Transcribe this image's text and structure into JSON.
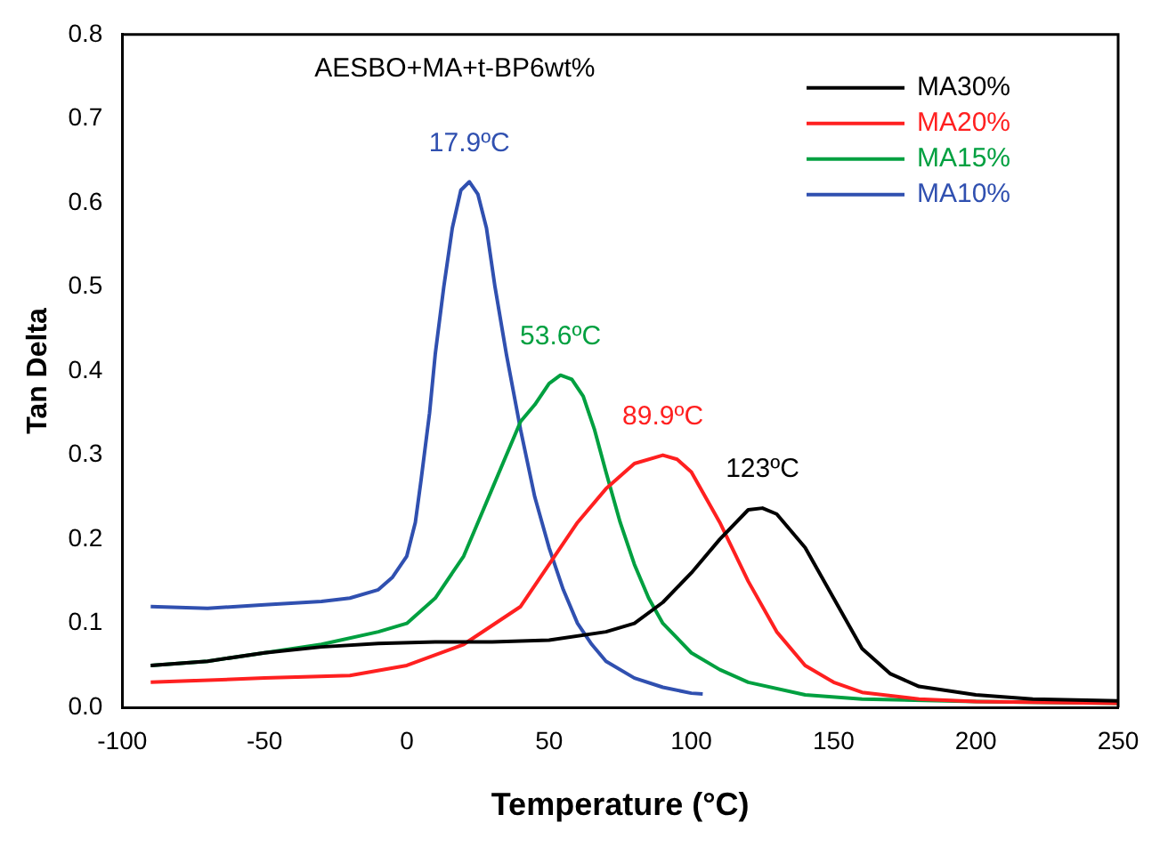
{
  "chart_data": {
    "type": "line",
    "xlabel": "Temperature (°C)",
    "ylabel": "Tan Delta",
    "xlim": [
      -100,
      250
    ],
    "xticks": [
      -100,
      -50,
      0,
      50,
      100,
      150,
      200,
      250
    ],
    "ylim": [
      0,
      0.8
    ],
    "yticks": [
      {
        "value": 0,
        "label": "0.0"
      },
      0.1,
      0.2,
      0.3,
      0.4,
      0.5,
      0.6,
      0.7,
      0.8
    ],
    "grid": false,
    "legend": "top right",
    "marker": "none",
    "line_style": "solid",
    "annotations": [
      "AESBO+MA+t-BP6wt%",
      "123ºC",
      "89.9ºC",
      "53.6ºC",
      "17.9ºC"
    ],
    "series": [
      {
        "name": "MA30%",
        "color": "#000000",
        "x": [
          -90,
          -70,
          -50,
          -30,
          -10,
          10,
          30,
          50,
          70,
          80,
          90,
          100,
          110,
          120,
          125,
          130,
          140,
          150,
          160,
          170,
          180,
          200,
          220,
          250
        ],
        "values": [
          0.05,
          0.055,
          0.065,
          0.072,
          0.076,
          0.078,
          0.078,
          0.08,
          0.09,
          0.1,
          0.125,
          0.16,
          0.2,
          0.235,
          0.237,
          0.23,
          0.19,
          0.13,
          0.07,
          0.04,
          0.025,
          0.015,
          0.01,
          0.008
        ]
      },
      {
        "name": "MA20%",
        "color": "#ff2020",
        "x": [
          -90,
          -50,
          -20,
          0,
          20,
          40,
          50,
          60,
          70,
          80,
          90,
          95,
          100,
          110,
          120,
          130,
          140,
          150,
          160,
          180,
          200,
          250
        ],
        "values": [
          0.03,
          0.035,
          0.038,
          0.05,
          0.075,
          0.12,
          0.17,
          0.22,
          0.26,
          0.29,
          0.3,
          0.295,
          0.28,
          0.22,
          0.15,
          0.09,
          0.05,
          0.03,
          0.018,
          0.01,
          0.007,
          0.005
        ]
      },
      {
        "name": "MA15%",
        "color": "#00a040",
        "x": [
          -90,
          -70,
          -50,
          -30,
          -10,
          0,
          10,
          20,
          25,
          30,
          35,
          40,
          45,
          50,
          54,
          58,
          62,
          66,
          70,
          75,
          80,
          85,
          90,
          100,
          110,
          120,
          140,
          160,
          200,
          250
        ],
        "values": [
          0.05,
          0.055,
          0.065,
          0.075,
          0.09,
          0.1,
          0.13,
          0.18,
          0.22,
          0.26,
          0.3,
          0.34,
          0.36,
          0.385,
          0.395,
          0.39,
          0.37,
          0.33,
          0.28,
          0.22,
          0.17,
          0.13,
          0.1,
          0.065,
          0.045,
          0.03,
          0.015,
          0.01,
          0.007,
          0.005
        ]
      },
      {
        "name": "MA10%",
        "color": "#3050b0",
        "x": [
          -90,
          -70,
          -50,
          -30,
          -20,
          -10,
          -5,
          0,
          3,
          5,
          8,
          10,
          13,
          16,
          19,
          22,
          25,
          28,
          31,
          35,
          40,
          45,
          50,
          55,
          60,
          65,
          70,
          80,
          90,
          100,
          104
        ],
        "values": [
          0.12,
          0.118,
          0.122,
          0.126,
          0.13,
          0.14,
          0.155,
          0.18,
          0.22,
          0.27,
          0.35,
          0.42,
          0.5,
          0.57,
          0.615,
          0.625,
          0.61,
          0.57,
          0.5,
          0.42,
          0.33,
          0.25,
          0.19,
          0.14,
          0.1,
          0.075,
          0.055,
          0.035,
          0.024,
          0.017,
          0.016
        ]
      }
    ]
  }
}
